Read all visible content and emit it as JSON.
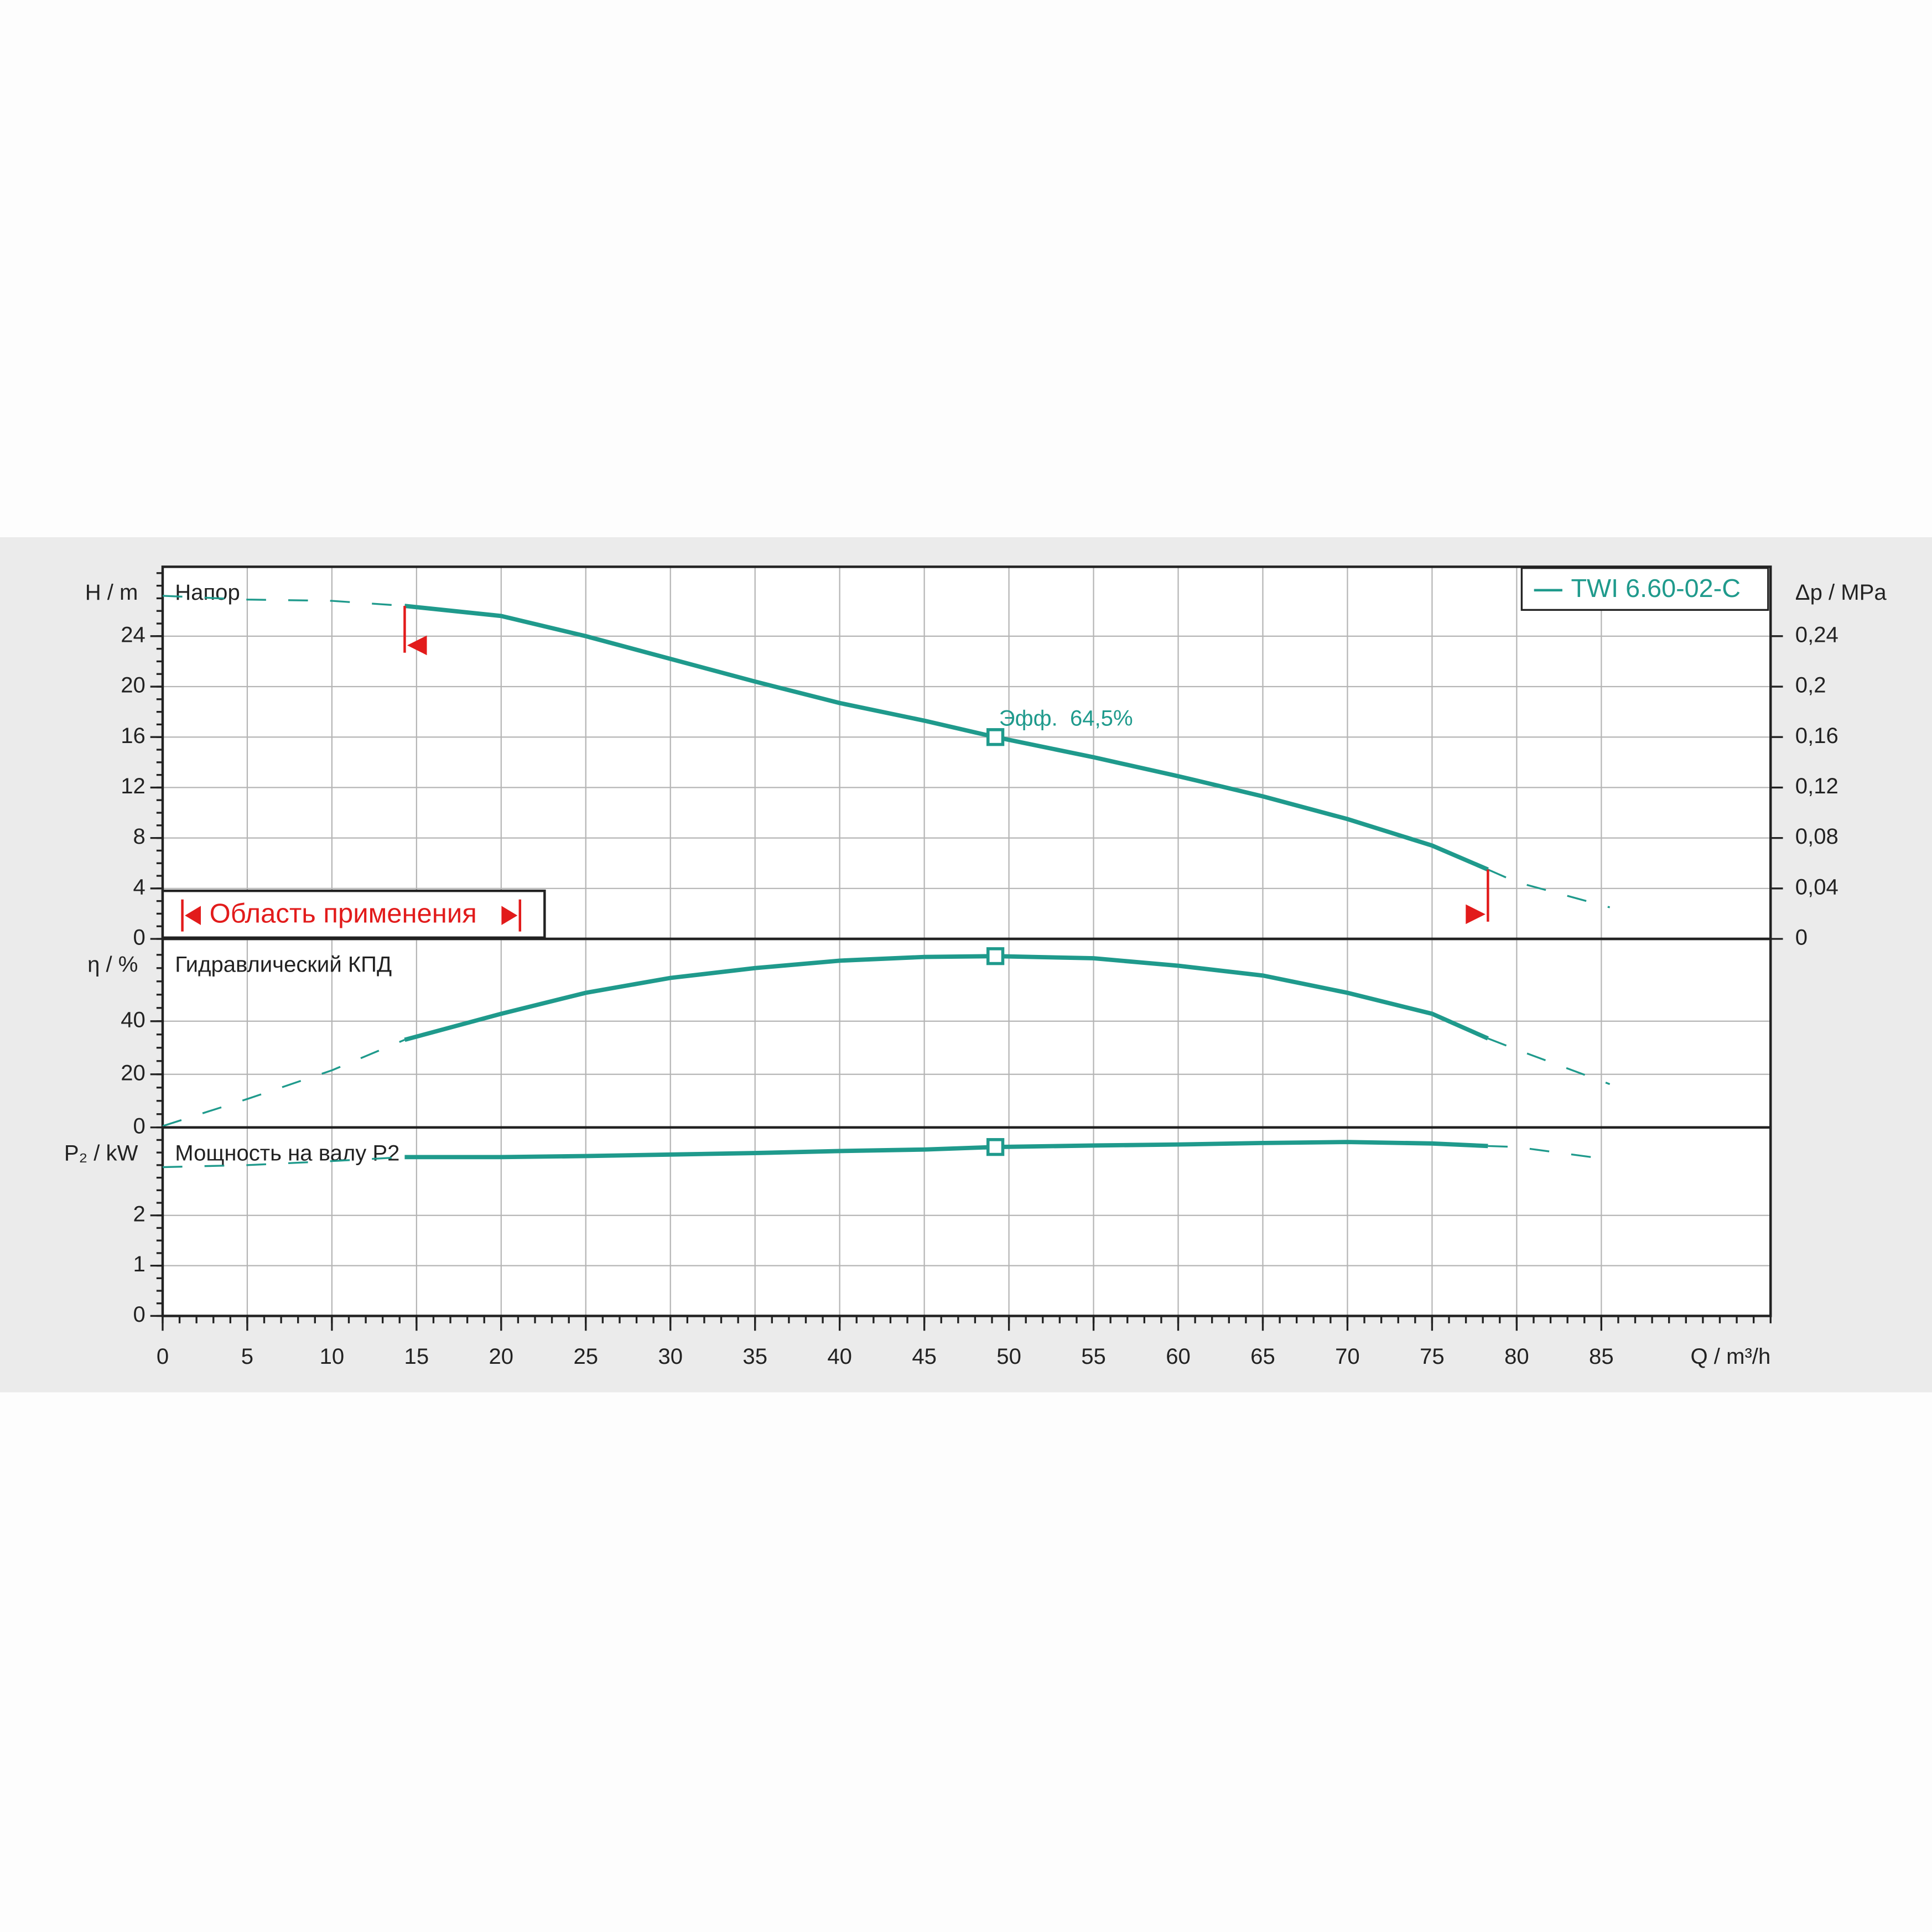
{
  "chart_data": [
    {
      "type": "line",
      "title": "Напор",
      "y_label": "H / m",
      "y2_label": "Δp / MPa",
      "xlim": [
        0,
        95
      ],
      "ylim": [
        0,
        29.5
      ],
      "yticks": [
        0,
        4,
        8,
        12,
        16,
        20,
        24
      ],
      "y2lim": [
        0,
        0.295
      ],
      "y2ticks": [
        0,
        {
          "value": 0.04,
          "label": "0,04"
        },
        {
          "value": 0.08,
          "label": "0,08"
        },
        {
          "value": 0.12,
          "label": "0,12"
        },
        {
          "value": 0.16,
          "label": "0,16"
        },
        {
          "value": 0.2,
          "label": "0,2"
        },
        {
          "value": 0.24,
          "label": "0,24"
        }
      ],
      "x": [
        0,
        5,
        10,
        14.3,
        20,
        25,
        30,
        35,
        40,
        45,
        49.2,
        55,
        60,
        65,
        70,
        75,
        78.3,
        80,
        85.5
      ],
      "series": [
        {
          "name": "TWI 6.60-02-C",
          "color": "#1f9a8c",
          "values": [
            27.2,
            26.9,
            26.8,
            26.4,
            25.6,
            24.0,
            22.2,
            20.4,
            18.7,
            17.3,
            16.0,
            14.4,
            12.9,
            11.3,
            9.5,
            7.4,
            5.5,
            4.5,
            2.5
          ]
        }
      ],
      "operating_range": [
        14.3,
        78.3
      ],
      "duty_point": {
        "x": 49.2,
        "y": 16.0
      },
      "annotation": "Эфф.  64,5%",
      "range_label": "Область применения",
      "legend": "upper right",
      "grid": true
    },
    {
      "type": "line",
      "title": "Гидравлический КПД",
      "y_label": "η / %",
      "xlim": [
        0,
        95
      ],
      "ylim": [
        0,
        71
      ],
      "yticks": [
        0,
        20,
        40
      ],
      "x": [
        0,
        5,
        10,
        14.3,
        20,
        25,
        30,
        35,
        40,
        45,
        49.2,
        55,
        60,
        65,
        70,
        75,
        78.3,
        80,
        85.5
      ],
      "series": [
        {
          "color": "#1f9a8c",
          "values": [
            0.5,
            10.7,
            21.5,
            33,
            42.8,
            50.7,
            56.3,
            60,
            62.8,
            64.2,
            64.5,
            63.7,
            60.9,
            57.2,
            50.7,
            42.8,
            33.5,
            29.3,
            16.3
          ]
        }
      ],
      "operating_range": [
        14.3,
        78.3
      ],
      "duty_point": {
        "x": 49.2,
        "y": 64.5
      },
      "grid": true
    },
    {
      "type": "line",
      "title": "Мощность на валу P2",
      "y_label": "P₂ / kW",
      "x_label": "Q / m³/h",
      "xlim": [
        0,
        95
      ],
      "ylim": [
        0,
        3.75
      ],
      "yticks": [
        0,
        1,
        2
      ],
      "xticks": [
        0,
        5,
        10,
        15,
        20,
        25,
        30,
        35,
        40,
        45,
        50,
        55,
        60,
        65,
        70,
        75,
        80,
        85
      ],
      "x": [
        0,
        5,
        10,
        14.3,
        20,
        25,
        30,
        35,
        40,
        45,
        49.2,
        55,
        60,
        65,
        70,
        75,
        78.3,
        80,
        85.5
      ],
      "series": [
        {
          "color": "#1f9a8c",
          "values": [
            2.96,
            3.0,
            3.08,
            3.16,
            3.16,
            3.18,
            3.21,
            3.24,
            3.28,
            3.31,
            3.36,
            3.39,
            3.41,
            3.44,
            3.46,
            3.43,
            3.38,
            3.36,
            3.11
          ]
        }
      ],
      "operating_range": [
        14.3,
        78.3
      ],
      "duty_point": {
        "x": 49.2,
        "y": 3.36
      },
      "grid": true
    }
  ]
}
